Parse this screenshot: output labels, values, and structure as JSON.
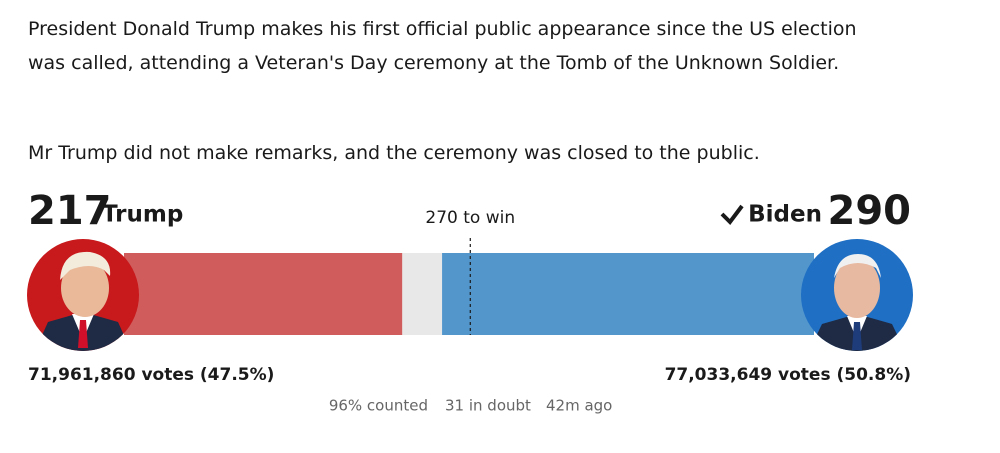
{
  "article": {
    "paragraphs": [
      "President Donald Trump makes his first official public appearance since the US election was called, attending a Veteran's Day ceremony at the Tomb of the Unknown Soldier.",
      "Mr Trump did not make remarks, and the ceremony was closed to the public."
    ]
  },
  "results": {
    "candidates": [
      {
        "name": "Trump",
        "electoral_votes": 217,
        "votes": "71,961,860 votes (47.5%)",
        "color": "#d05c5c"
      },
      {
        "name": "Biden",
        "electoral_votes": 290,
        "votes": "77,033,649 votes (50.8%)",
        "color": "#5296cc"
      }
    ],
    "threshold": {
      "value": 270,
      "label": "270 to win"
    },
    "in_doubt": {
      "value": 31,
      "label": "31 in doubt",
      "color": "#e8e8e8"
    },
    "counted": "96% counted",
    "updated": "42m ago"
  }
}
